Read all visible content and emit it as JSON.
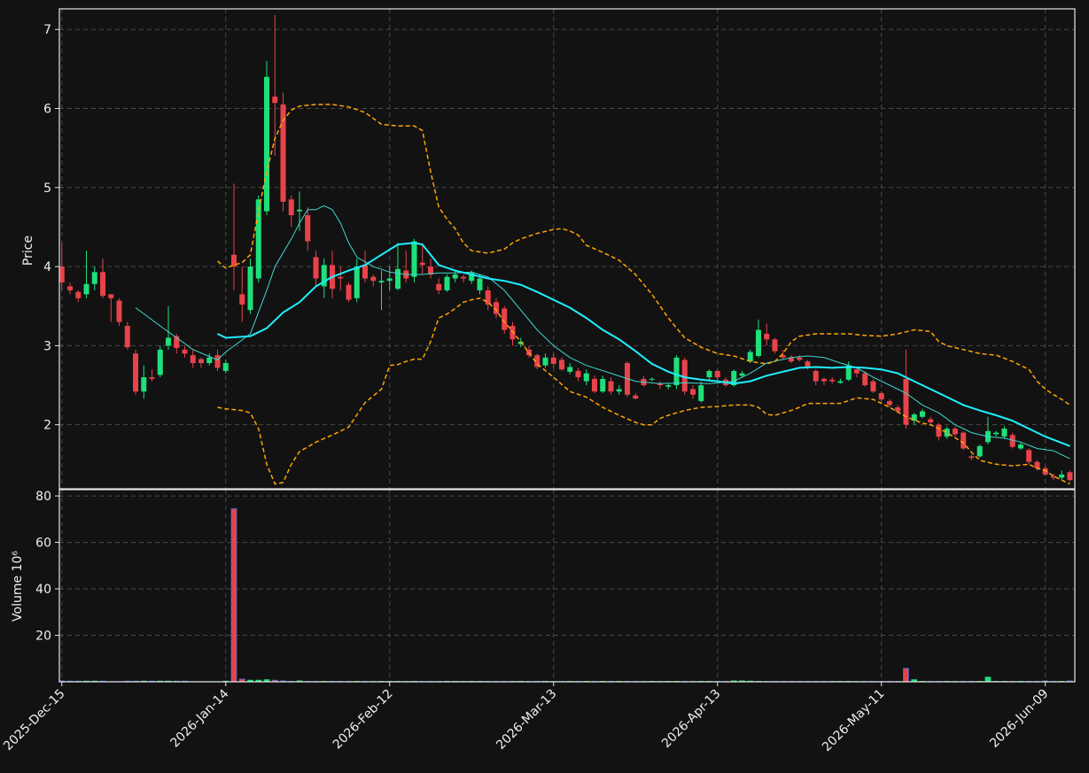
{
  "chart_data": {
    "type": "candlestick",
    "ylabel": "Price",
    "xlim": [
      -0.3,
      123.6
    ],
    "ylim": [
      1.19,
      7.26
    ],
    "yticks": [
      2,
      3,
      4,
      5,
      6,
      7
    ],
    "xticks": [
      {
        "value": 0,
        "label": "2025-Dec-15"
      },
      {
        "value": 20,
        "label": "2026-Jan-14"
      },
      {
        "value": 40,
        "label": "2026-Feb-12"
      },
      {
        "value": 60,
        "label": "2026-Mar-13"
      },
      {
        "value": 80,
        "label": "2026-Apr-13"
      },
      {
        "value": 100,
        "label": "2026-May-11"
      },
      {
        "value": 120,
        "label": "2026-Jun-09"
      }
    ],
    "grid": true,
    "up_color": "#1ee07a",
    "down_color": "#e8434a",
    "open": [
      4.0,
      3.75,
      3.68,
      3.65,
      3.78,
      3.93,
      3.65,
      3.57,
      3.25,
      2.9,
      2.42,
      2.6,
      2.63,
      3.0,
      3.12,
      2.95,
      2.88,
      2.83,
      2.78,
      2.88,
      2.68,
      4.15,
      3.65,
      3.45,
      3.85,
      4.7,
      6.15,
      6.05,
      4.85,
      4.7,
      4.65,
      4.12,
      3.75,
      4.02,
      3.87,
      3.77,
      3.6,
      4.02,
      3.87,
      3.8,
      3.82,
      3.72,
      3.95,
      3.87,
      4.05,
      4.0,
      3.78,
      3.7,
      3.85,
      3.87,
      3.82,
      3.7,
      3.7,
      3.55,
      3.47,
      3.25,
      3.02,
      2.95,
      2.88,
      2.75,
      2.85,
      2.82,
      2.67,
      2.68,
      2.55,
      2.58,
      2.42,
      2.55,
      2.42,
      2.78,
      2.37,
      2.58,
      2.57,
      2.52,
      2.48,
      2.5,
      2.82,
      2.45,
      2.3,
      2.6,
      2.68,
      2.57,
      2.5,
      2.62,
      2.8,
      2.87,
      3.15,
      3.08,
      2.88,
      2.85,
      2.85,
      2.8,
      2.68,
      2.58,
      2.57,
      2.53,
      2.57,
      2.7,
      2.65,
      2.55,
      2.4,
      2.3,
      2.22,
      2.58,
      2.05,
      2.1,
      2.07,
      2.0,
      1.85,
      1.95,
      1.9,
      1.6,
      1.6,
      1.78,
      1.88,
      1.85,
      1.87,
      1.7,
      1.68,
      1.53,
      1.45,
      1.35,
      1.33,
      1.4
    ],
    "high": [
      4.3,
      3.8,
      3.7,
      4.2,
      4.0,
      4.1,
      3.65,
      3.6,
      3.3,
      2.95,
      2.75,
      2.7,
      3.0,
      3.5,
      3.15,
      3.0,
      2.95,
      2.85,
      2.9,
      2.95,
      2.82,
      5.05,
      4.0,
      4.1,
      4.9,
      6.6,
      7.18,
      6.2,
      4.9,
      4.95,
      4.75,
      4.2,
      4.1,
      4.2,
      4.0,
      3.8,
      4.1,
      4.2,
      3.9,
      3.95,
      4.0,
      4.3,
      4.2,
      4.35,
      4.3,
      4.1,
      3.85,
      3.9,
      3.95,
      3.9,
      3.95,
      3.9,
      3.75,
      3.6,
      3.5,
      3.3,
      3.1,
      3.0,
      2.9,
      2.9,
      2.9,
      2.85,
      2.78,
      2.72,
      2.7,
      2.62,
      2.62,
      2.6,
      2.5,
      2.8,
      2.4,
      2.62,
      2.6,
      2.55,
      2.52,
      2.88,
      2.85,
      2.5,
      2.55,
      2.7,
      2.7,
      2.6,
      2.7,
      2.68,
      2.95,
      3.33,
      3.28,
      3.1,
      2.95,
      2.88,
      2.88,
      2.82,
      2.7,
      2.6,
      2.6,
      2.58,
      2.8,
      2.72,
      2.68,
      2.58,
      2.42,
      2.32,
      2.25,
      2.95,
      2.15,
      2.2,
      2.1,
      2.02,
      1.98,
      1.98,
      1.92,
      1.62,
      1.75,
      2.1,
      1.92,
      1.98,
      1.9,
      1.78,
      1.7,
      1.55,
      1.48,
      1.38,
      1.42,
      1.42
    ],
    "low": [
      3.7,
      3.65,
      3.55,
      3.6,
      3.7,
      3.6,
      3.3,
      3.25,
      2.95,
      2.38,
      2.33,
      2.55,
      2.6,
      2.95,
      2.9,
      2.85,
      2.72,
      2.72,
      2.75,
      2.68,
      2.65,
      3.7,
      3.3,
      3.4,
      3.8,
      4.65,
      5.4,
      4.7,
      4.5,
      4.45,
      4.2,
      3.75,
      3.6,
      3.6,
      3.7,
      3.55,
      3.55,
      3.8,
      3.75,
      3.45,
      3.7,
      3.7,
      3.8,
      3.8,
      3.9,
      3.85,
      3.65,
      3.68,
      3.8,
      3.8,
      3.78,
      3.65,
      3.45,
      3.35,
      3.15,
      3.0,
      2.98,
      2.85,
      2.7,
      2.72,
      2.72,
      2.68,
      2.64,
      2.55,
      2.5,
      2.4,
      2.4,
      2.38,
      2.38,
      2.35,
      2.32,
      2.48,
      2.55,
      2.45,
      2.45,
      2.45,
      2.38,
      2.33,
      2.28,
      2.55,
      2.55,
      2.48,
      2.48,
      2.6,
      2.78,
      2.85,
      3.0,
      2.9,
      2.82,
      2.78,
      2.8,
      2.7,
      2.5,
      2.5,
      2.52,
      2.52,
      2.55,
      2.6,
      2.48,
      2.4,
      2.3,
      2.22,
      2.15,
      1.95,
      2.0,
      2.08,
      2.0,
      1.8,
      1.82,
      1.85,
      1.68,
      1.55,
      1.58,
      1.75,
      1.85,
      1.82,
      1.7,
      1.68,
      1.5,
      1.42,
      1.35,
      1.3,
      1.3,
      1.28
    ],
    "close": [
      3.8,
      3.7,
      3.6,
      3.78,
      3.93,
      3.63,
      3.6,
      3.3,
      2.98,
      2.42,
      2.6,
      2.58,
      2.95,
      3.1,
      2.97,
      2.9,
      2.78,
      2.78,
      2.85,
      2.72,
      2.78,
      4.0,
      3.52,
      4.0,
      4.85,
      6.4,
      6.07,
      4.82,
      4.65,
      4.72,
      4.32,
      3.85,
      4.02,
      3.72,
      3.85,
      3.58,
      4.0,
      3.85,
      3.82,
      3.82,
      3.85,
      3.97,
      3.85,
      4.32,
      4.02,
      3.9,
      3.7,
      3.87,
      3.9,
      3.85,
      3.92,
      3.85,
      3.52,
      3.4,
      3.2,
      3.08,
      3.05,
      2.88,
      2.73,
      2.85,
      2.77,
      2.7,
      2.73,
      2.6,
      2.65,
      2.42,
      2.58,
      2.42,
      2.45,
      2.38,
      2.33,
      2.5,
      2.58,
      2.5,
      2.5,
      2.85,
      2.42,
      2.38,
      2.5,
      2.68,
      2.6,
      2.5,
      2.68,
      2.65,
      2.92,
      3.2,
      3.08,
      2.93,
      2.85,
      2.8,
      2.82,
      2.72,
      2.55,
      2.55,
      2.55,
      2.55,
      2.75,
      2.65,
      2.5,
      2.42,
      2.32,
      2.25,
      2.17,
      2.0,
      2.13,
      2.17,
      2.03,
      1.85,
      1.95,
      1.88,
      1.7,
      1.58,
      1.73,
      1.92,
      1.9,
      1.95,
      1.72,
      1.75,
      1.53,
      1.45,
      1.37,
      1.33,
      1.37,
      1.3
    ],
    "overlays": [
      {
        "color": "#3fd8cc",
        "width": 1,
        "dashed": false,
        "x": [
          9,
          12,
          16,
          19,
          20,
          23,
          25,
          26,
          28,
          29,
          30,
          31,
          32,
          33,
          34,
          35,
          36,
          38,
          40,
          42,
          44,
          46,
          48,
          50,
          52,
          54,
          56,
          58,
          60,
          62,
          64,
          67,
          70,
          73,
          76,
          79,
          82,
          84,
          86,
          89,
          91,
          93,
          95,
          97,
          99,
          101,
          103,
          105,
          107,
          109,
          111,
          113,
          115,
          117,
          119,
          121,
          123
        ],
        "values": [
          3.48,
          3.25,
          2.95,
          2.82,
          2.92,
          3.15,
          3.7,
          4.0,
          4.35,
          4.55,
          4.72,
          4.72,
          4.77,
          4.72,
          4.55,
          4.3,
          4.12,
          4.0,
          3.93,
          3.9,
          3.9,
          3.92,
          3.92,
          3.93,
          3.87,
          3.7,
          3.45,
          3.2,
          3.0,
          2.85,
          2.75,
          2.65,
          2.55,
          2.52,
          2.53,
          2.52,
          2.55,
          2.65,
          2.78,
          2.85,
          2.87,
          2.85,
          2.78,
          2.72,
          2.6,
          2.5,
          2.4,
          2.25,
          2.15,
          2.0,
          1.9,
          1.85,
          1.83,
          1.78,
          1.7,
          1.67,
          1.57
        ]
      },
      {
        "color": "#1ef0ff",
        "width": 2,
        "dashed": false,
        "x": [
          19,
          20,
          23,
          25,
          27,
          29,
          31,
          33,
          35,
          37,
          39,
          41,
          43,
          44,
          45,
          46,
          48,
          50,
          52,
          54,
          56,
          58,
          60,
          62,
          64,
          66,
          68,
          70,
          72,
          74,
          76,
          78,
          80,
          82,
          84,
          86,
          88,
          90,
          92,
          94,
          96,
          98,
          100,
          102,
          104,
          106,
          108,
          110,
          112,
          114,
          116,
          118,
          120,
          122,
          123
        ],
        "values": [
          3.15,
          3.1,
          3.12,
          3.22,
          3.42,
          3.55,
          3.75,
          3.87,
          3.95,
          4.02,
          4.15,
          4.28,
          4.3,
          4.28,
          4.15,
          4.02,
          3.95,
          3.9,
          3.85,
          3.82,
          3.77,
          3.68,
          3.58,
          3.48,
          3.35,
          3.2,
          3.08,
          2.93,
          2.77,
          2.67,
          2.6,
          2.57,
          2.55,
          2.52,
          2.55,
          2.62,
          2.67,
          2.72,
          2.73,
          2.72,
          2.73,
          2.72,
          2.7,
          2.65,
          2.55,
          2.45,
          2.35,
          2.25,
          2.18,
          2.12,
          2.05,
          1.95,
          1.85,
          1.77,
          1.73
        ]
      },
      {
        "color": "#ffa500",
        "width": 1.5,
        "dashed": true,
        "x": [
          19,
          20,
          21,
          22,
          23,
          24,
          25,
          26,
          27,
          28,
          29,
          31,
          33,
          35,
          37,
          39,
          41,
          43,
          44,
          45,
          46,
          47,
          48,
          49,
          50,
          52,
          54,
          55,
          56,
          58,
          60,
          61,
          62,
          63,
          64,
          66,
          68,
          70,
          72,
          74,
          76,
          78,
          80,
          82,
          84,
          86,
          87,
          88,
          89,
          90,
          92,
          94,
          96,
          98,
          100,
          102,
          104,
          106,
          107,
          108,
          110,
          112,
          114,
          116,
          118,
          119,
          120,
          121,
          122,
          123
        ],
        "values": [
          4.07,
          3.98,
          4.02,
          4.05,
          4.15,
          4.7,
          5.2,
          5.62,
          5.85,
          5.98,
          6.03,
          6.05,
          6.05,
          6.02,
          5.95,
          5.8,
          5.78,
          5.78,
          5.72,
          5.2,
          4.75,
          4.6,
          4.48,
          4.3,
          4.2,
          4.17,
          4.22,
          4.3,
          4.35,
          4.42,
          4.47,
          4.48,
          4.45,
          4.4,
          4.27,
          4.18,
          4.08,
          3.9,
          3.65,
          3.35,
          3.1,
          2.98,
          2.9,
          2.87,
          2.8,
          2.77,
          2.8,
          2.9,
          3.05,
          3.12,
          3.15,
          3.15,
          3.15,
          3.13,
          3.12,
          3.15,
          3.2,
          3.18,
          3.05,
          3.0,
          2.95,
          2.9,
          2.88,
          2.8,
          2.7,
          2.55,
          2.45,
          2.38,
          2.32,
          2.25
        ]
      },
      {
        "color": "#ffa500",
        "width": 1.5,
        "dashed": true,
        "x": [
          19,
          20,
          22,
          23,
          24,
          25,
          26,
          27,
          28,
          29,
          30,
          31,
          33,
          35,
          37,
          39,
          40,
          41,
          42,
          43,
          44,
          45,
          46,
          47,
          48,
          49,
          50,
          51,
          52,
          53,
          54,
          56,
          58,
          60,
          62,
          64,
          66,
          68,
          70,
          71,
          72,
          73,
          74,
          76,
          78,
          80,
          82,
          84,
          85,
          86,
          87,
          88,
          89,
          90,
          91,
          93,
          95,
          97,
          99,
          101,
          103,
          105,
          106,
          108,
          110,
          111,
          112,
          114,
          116,
          118,
          119,
          120,
          121,
          122,
          123
        ],
        "values": [
          2.22,
          2.2,
          2.18,
          2.15,
          1.95,
          1.5,
          1.25,
          1.27,
          1.5,
          1.66,
          1.72,
          1.78,
          1.87,
          1.97,
          2.28,
          2.45,
          2.75,
          2.76,
          2.8,
          2.83,
          2.83,
          3.05,
          3.35,
          3.4,
          3.47,
          3.55,
          3.58,
          3.6,
          3.55,
          3.45,
          3.3,
          3.05,
          2.77,
          2.6,
          2.42,
          2.35,
          2.22,
          2.12,
          2.03,
          2.0,
          2.0,
          2.08,
          2.12,
          2.18,
          2.22,
          2.23,
          2.25,
          2.25,
          2.22,
          2.13,
          2.12,
          2.15,
          2.18,
          2.22,
          2.27,
          2.27,
          2.27,
          2.34,
          2.32,
          2.22,
          2.1,
          2.02,
          2.0,
          1.9,
          1.77,
          1.65,
          1.55,
          1.5,
          1.48,
          1.5,
          1.45,
          1.42,
          1.35,
          1.3,
          1.25
        ]
      }
    ],
    "volume": {
      "ylabel": "Volume  10⁶",
      "ylim": [
        0,
        82.7
      ],
      "yticks": [
        20,
        40,
        60,
        80
      ],
      "values": [
        0.4,
        0.3,
        0.3,
        0.3,
        0.3,
        0.3,
        0.1,
        0.1,
        0.3,
        0.3,
        0.3,
        0.3,
        0.3,
        0.3,
        0.3,
        0.3,
        0.1,
        0.1,
        0.1,
        0.1,
        0.3,
        74.5,
        1.2,
        0.7,
        0.7,
        0.9,
        0.7,
        0.4,
        0.2,
        0.4,
        0.2,
        0.2,
        0.2,
        0.2,
        0.2,
        0.2,
        0.2,
        0.2,
        0.2,
        0.2,
        0.2,
        0.2,
        0.2,
        0.2,
        0.2,
        0.2,
        0.2,
        0.2,
        0.2,
        0.2,
        0.2,
        0.2,
        0.2,
        0.2,
        0.2,
        0.2,
        0.2,
        0.2,
        0.2,
        0.2,
        0.2,
        0.2,
        0.2,
        0.2,
        0.2,
        0.2,
        0.2,
        0.2,
        0.2,
        0.2,
        0.2,
        0.2,
        0.2,
        0.2,
        0.2,
        0.2,
        0.2,
        0.2,
        0.2,
        0.2,
        0.2,
        0.2,
        0.4,
        0.4,
        0.3,
        0.2,
        0.2,
        0.2,
        0.2,
        0.2,
        0.2,
        0.2,
        0.2,
        0.2,
        0.2,
        0.2,
        0.2,
        0.2,
        0.2,
        0.2,
        0.2,
        0.2,
        0.2,
        5.8,
        0.9,
        0.2,
        0.2,
        0.2,
        0.2,
        0.2,
        0.2,
        0.2,
        0.2,
        2.0,
        0.2,
        0.2,
        0.2,
        0.2,
        0.2,
        0.2,
        0.4,
        0.2,
        0.2,
        0.4
      ]
    }
  }
}
